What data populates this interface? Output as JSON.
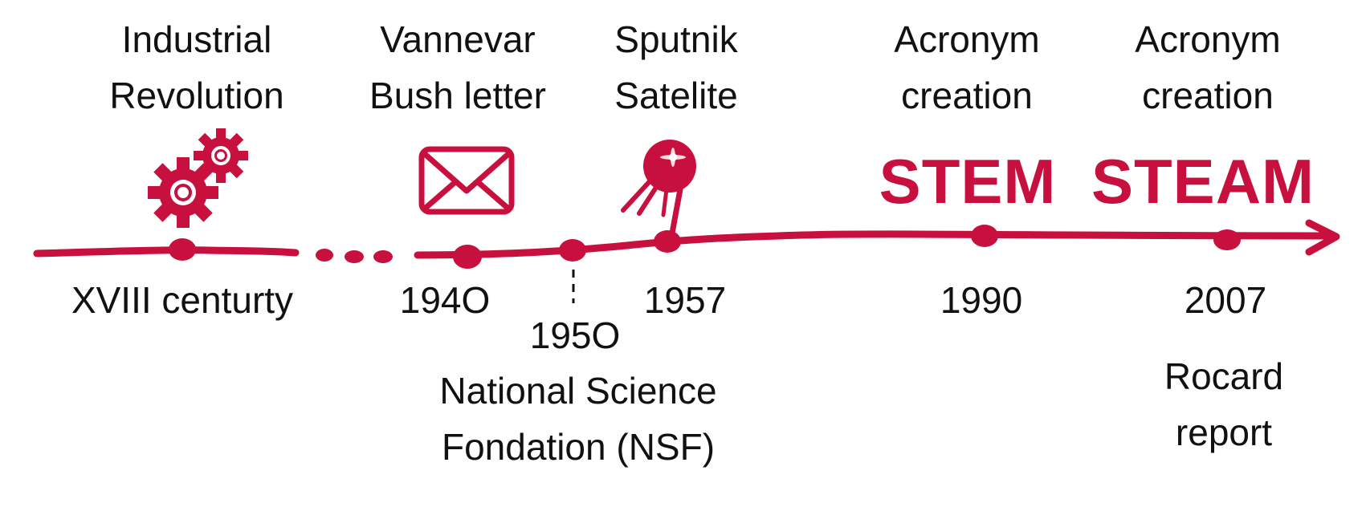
{
  "colors": {
    "accent": "#c8103f",
    "text": "#111111",
    "background": "#ffffff"
  },
  "events": [
    {
      "id": "industrial",
      "title_lines": [
        "Industrial",
        "Revolution"
      ],
      "date": "XVIII centurty",
      "icon": "gears-icon"
    },
    {
      "id": "bush",
      "title_lines": [
        "Vannevar",
        "Bush letter"
      ],
      "date": "194O",
      "icon": "envelope-icon"
    },
    {
      "id": "nsf",
      "date": "195O",
      "caption_lines": [
        "National Science",
        "Fondation (NSF)"
      ]
    },
    {
      "id": "sputnik",
      "title_lines": [
        "Sputnik",
        "Satelite"
      ],
      "date": "1957",
      "icon": "satellite-icon"
    },
    {
      "id": "stem",
      "title_lines": [
        "Acronym",
        "creation"
      ],
      "date": "1990",
      "acronym": "STEM"
    },
    {
      "id": "steam",
      "title_lines": [
        "Acronym",
        "creation"
      ],
      "date": "2007",
      "acronym": "STEAM",
      "caption_lines": [
        "Rocard",
        "report"
      ]
    }
  ]
}
